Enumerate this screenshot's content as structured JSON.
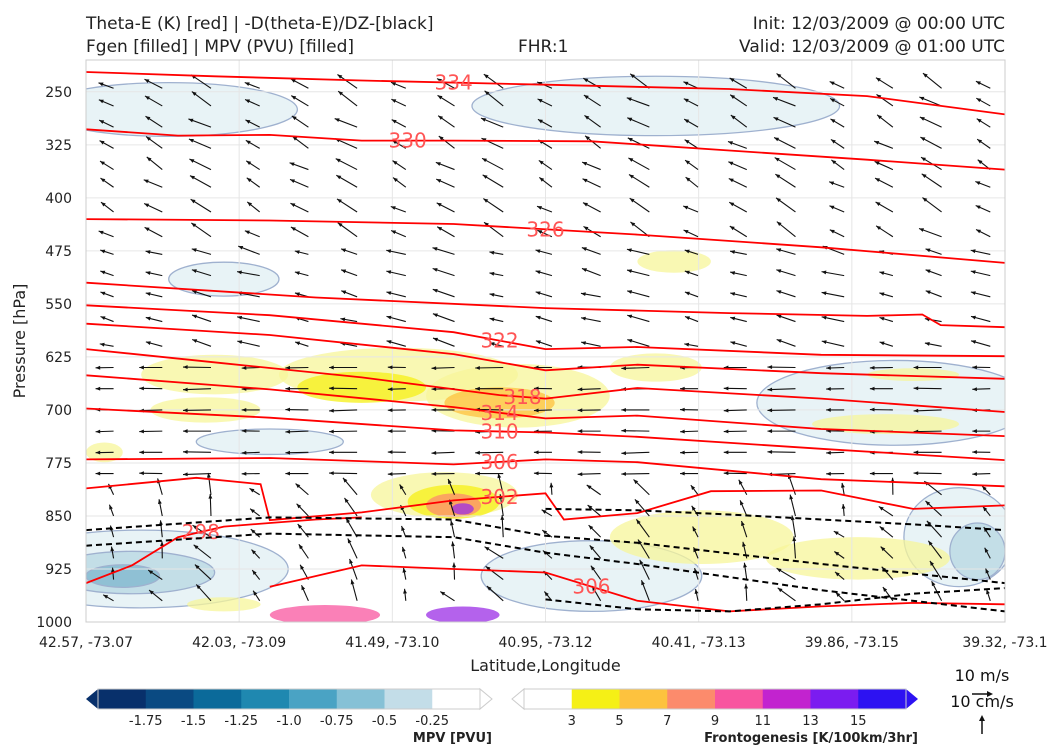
{
  "header": {
    "title_left_1": "Theta-E (K) [red] | -D(theta-E)/DZ-[black]",
    "title_left_2": "Fgen [filled] | MPV (PVU) [filled]",
    "title_center": "FHR:1",
    "title_right_1": "Init: 12/03/2009 @ 00:00 UTC",
    "title_right_2": "Valid: 12/03/2009 @ 01:00 UTC"
  },
  "chart_data": {
    "type": "cross-section",
    "xlabel": "Latitude,Longitude",
    "ylabel": "Pressure [hPa]",
    "x_tick_labels": [
      "42.57, -73.07",
      "42.03, -73.09",
      "41.49, -73.10",
      "40.95, -73.12",
      "40.41, -73.13",
      "39.86, -73.15",
      "39.32, -73.1"
    ],
    "y_ticks": [
      250,
      325,
      400,
      475,
      550,
      625,
      700,
      775,
      850,
      925,
      1000
    ],
    "ylim": [
      1000,
      205
    ],
    "grid": true,
    "theta_e_contours": {
      "color": "#ff0000",
      "lines": [
        {
          "label": "334",
          "x": [
            0,
            0.14,
            0.3,
            0.5,
            0.7,
            0.85,
            1.0
          ],
          "p": [
            222,
            228,
            234,
            240,
            246,
            256,
            282
          ]
        },
        {
          "label": "330",
          "x": [
            0,
            0.1,
            0.2,
            0.3,
            0.4,
            0.55,
            0.7,
            0.85,
            1.0
          ],
          "p": [
            303,
            312,
            311,
            319,
            319,
            320,
            333,
            346,
            360
          ]
        },
        {
          "label": "326",
          "x": [
            0,
            0.2,
            0.4,
            0.6,
            0.8,
            1.0
          ],
          "p": [
            430,
            432,
            437,
            452,
            470,
            492
          ]
        },
        {
          "label": "",
          "x": [
            0,
            0.25,
            0.5,
            0.7,
            0.85,
            0.91,
            0.93,
            1.0
          ],
          "p": [
            520,
            541,
            556,
            563,
            567,
            565,
            580,
            583
          ]
        },
        {
          "label": "322",
          "x": [
            0,
            0.2,
            0.4,
            0.5,
            0.6,
            0.8,
            1.0
          ],
          "p": [
            552,
            566,
            590,
            614,
            611,
            622,
            624
          ]
        },
        {
          "label": "",
          "x": [
            0,
            0.2,
            0.4,
            0.5,
            0.6,
            0.8,
            1.0
          ],
          "p": [
            578,
            594,
            621,
            644,
            636,
            648,
            656
          ]
        },
        {
          "label": "318",
          "x": [
            0,
            0.15,
            0.3,
            0.45,
            0.5,
            0.6,
            0.8,
            1.0
          ],
          "p": [
            614,
            634,
            654,
            679,
            684,
            669,
            684,
            703
          ]
        },
        {
          "label": "314",
          "x": [
            0,
            0.2,
            0.4,
            0.5,
            0.6,
            0.8,
            1.0
          ],
          "p": [
            651,
            671,
            696,
            712,
            708,
            727,
            737
          ]
        },
        {
          "label": "310",
          "x": [
            0,
            0.2,
            0.4,
            0.5,
            0.6,
            0.8,
            1.0
          ],
          "p": [
            698,
            711,
            729,
            732,
            738,
            755,
            771
          ]
        },
        {
          "label": "306",
          "x": [
            0,
            0.2,
            0.4,
            0.5,
            0.6,
            0.8,
            1.0
          ],
          "p": [
            770,
            768,
            777,
            770,
            774,
            798,
            808
          ]
        },
        {
          "label": "302",
          "x": [
            0,
            0.12,
            0.19,
            0.2,
            0.3,
            0.4,
            0.5,
            0.52,
            0.6,
            0.68,
            0.8,
            0.9,
            1.0
          ],
          "p": [
            811,
            796,
            805,
            856,
            845,
            828,
            818,
            855,
            846,
            815,
            814,
            840,
            835
          ]
        },
        {
          "label": "298",
          "x": [
            0,
            0.05,
            0.1,
            0.15,
            0.2,
            0.25,
            0.3
          ],
          "p": [
            945,
            920,
            880,
            865,
            860,
            855,
            852
          ]
        },
        {
          "label": "306",
          "x": [
            0.2,
            0.3,
            0.4,
            0.5,
            0.6,
            0.7,
            0.8,
            0.9,
            1.0
          ],
          "p": [
            950,
            920,
            925,
            930,
            970,
            985,
            978,
            973,
            975
          ]
        }
      ]
    },
    "ddz_theta_e_dashed_contours": {
      "color": "#000000",
      "lines": [
        {
          "x": [
            0,
            0.2,
            0.4,
            0.5,
            0.6,
            0.8,
            1.0
          ],
          "p": [
            870,
            852,
            855,
            878,
            888,
            918,
            945
          ]
        },
        {
          "x": [
            0,
            0.2,
            0.4,
            0.5,
            0.6,
            0.8,
            1.0
          ],
          "p": [
            892,
            875,
            880,
            902,
            918,
            955,
            985
          ]
        },
        {
          "x": [
            0.5,
            0.6,
            0.7,
            0.8,
            0.9,
            1.0
          ],
          "p": [
            840,
            842,
            848,
            855,
            862,
            870
          ]
        },
        {
          "x": [
            0.5,
            0.6,
            0.7,
            0.8,
            0.9,
            1.0
          ],
          "p": [
            968,
            982,
            985,
            975,
            960,
            952
          ]
        }
      ]
    },
    "mpv_colorbar": {
      "title": "MPV [PVU]",
      "tick_labels": [
        "-1.75",
        "-1.5",
        "-1.25",
        "-1.0",
        "-0.75",
        "-0.5",
        "-0.25"
      ],
      "colors": [
        "#08306b",
        "#0a4a82",
        "#0b6a9a",
        "#1f88b0",
        "#4aa3c4",
        "#86c1d6",
        "#c3dde8",
        "#ffffff"
      ]
    },
    "fgen_colorbar": {
      "title": "Frontogenesis [K/100km/3hr]",
      "tick_labels": [
        "3",
        "5",
        "7",
        "9",
        "11",
        "13",
        "15"
      ],
      "colors": [
        "#ffffff",
        "#f5f016",
        "#fdc23e",
        "#fc8b6c",
        "#f8559f",
        "#c223cf",
        "#7b1cf0",
        "#2d12f2"
      ]
    },
    "wind_key": {
      "horizontal_label": "10 m/s",
      "vertical_label": "10 cm/s"
    },
    "fgen_regions": [
      {
        "value": 3,
        "cx": 0.14,
        "p": 650,
        "rx": 0.08,
        "rp": 28
      },
      {
        "value": 3,
        "cx": 0.13,
        "p": 700,
        "rx": 0.06,
        "rp": 18
      },
      {
        "value": 3,
        "cx": 0.34,
        "p": 650,
        "rx": 0.13,
        "rp": 38
      },
      {
        "value": 5,
        "cx": 0.3,
        "p": 668,
        "rx": 0.07,
        "rp": 22
      },
      {
        "value": 3,
        "cx": 0.47,
        "p": 680,
        "rx": 0.1,
        "rp": 45
      },
      {
        "value": 7,
        "cx": 0.45,
        "p": 690,
        "rx": 0.06,
        "rp": 22
      },
      {
        "value": 3,
        "cx": 0.62,
        "p": 640,
        "rx": 0.05,
        "rp": 20
      },
      {
        "value": 3,
        "cx": 0.39,
        "p": 820,
        "rx": 0.08,
        "rp": 32
      },
      {
        "value": 5,
        "cx": 0.4,
        "p": 830,
        "rx": 0.05,
        "rp": 24
      },
      {
        "value": 9,
        "cx": 0.4,
        "p": 835,
        "rx": 0.03,
        "rp": 17
      },
      {
        "value": 13,
        "cx": 0.41,
        "p": 840,
        "rx": 0.012,
        "rp": 8
      },
      {
        "value": 3,
        "cx": 0.64,
        "p": 490,
        "rx": 0.04,
        "rp": 16
      },
      {
        "value": 3,
        "cx": 0.87,
        "p": 720,
        "rx": 0.08,
        "rp": 14
      },
      {
        "value": 3,
        "cx": 0.67,
        "p": 880,
        "rx": 0.1,
        "rp": 38
      },
      {
        "value": 3,
        "cx": 0.84,
        "p": 910,
        "rx": 0.1,
        "rp": 30
      },
      {
        "value": 3,
        "cx": 0.9,
        "p": 650,
        "rx": 0.05,
        "rp": 9
      },
      {
        "value": 3,
        "cx": 0.02,
        "p": 760,
        "rx": 0.02,
        "rp": 14
      },
      {
        "value": 3,
        "cx": 0.15,
        "p": 975,
        "rx": 0.04,
        "rp": 10
      },
      {
        "value": 11,
        "cx": 0.26,
        "p": 990,
        "rx": 0.06,
        "rp": 14
      },
      {
        "value": 13,
        "cx": 0.41,
        "p": 990,
        "rx": 0.04,
        "rp": 12
      }
    ],
    "mpv_regions": [
      {
        "value": -0.25,
        "cx": 0.62,
        "p": 270,
        "rx": 0.2,
        "rp": 42
      },
      {
        "value": -0.25,
        "cx": 0.09,
        "p": 275,
        "rx": 0.14,
        "rp": 38
      },
      {
        "value": -0.25,
        "cx": 0.15,
        "p": 515,
        "rx": 0.06,
        "rp": 24
      },
      {
        "value": -0.25,
        "cx": 0.2,
        "p": 745,
        "rx": 0.08,
        "rp": 18
      },
      {
        "value": -0.25,
        "cx": 0.88,
        "p": 690,
        "rx": 0.15,
        "rp": 60
      },
      {
        "value": -0.25,
        "cx": 0.06,
        "p": 925,
        "rx": 0.16,
        "rp": 55
      },
      {
        "value": -0.5,
        "cx": 0.05,
        "p": 930,
        "rx": 0.09,
        "rp": 30
      },
      {
        "value": -0.75,
        "cx": 0.04,
        "p": 935,
        "rx": 0.04,
        "rp": 16
      },
      {
        "value": -0.25,
        "cx": 0.55,
        "p": 935,
        "rx": 0.12,
        "rp": 50
      },
      {
        "value": -0.25,
        "cx": 0.95,
        "p": 880,
        "rx": 0.06,
        "rp": 70
      },
      {
        "value": -0.5,
        "cx": 0.97,
        "p": 900,
        "rx": 0.03,
        "rp": 40
      }
    ]
  }
}
